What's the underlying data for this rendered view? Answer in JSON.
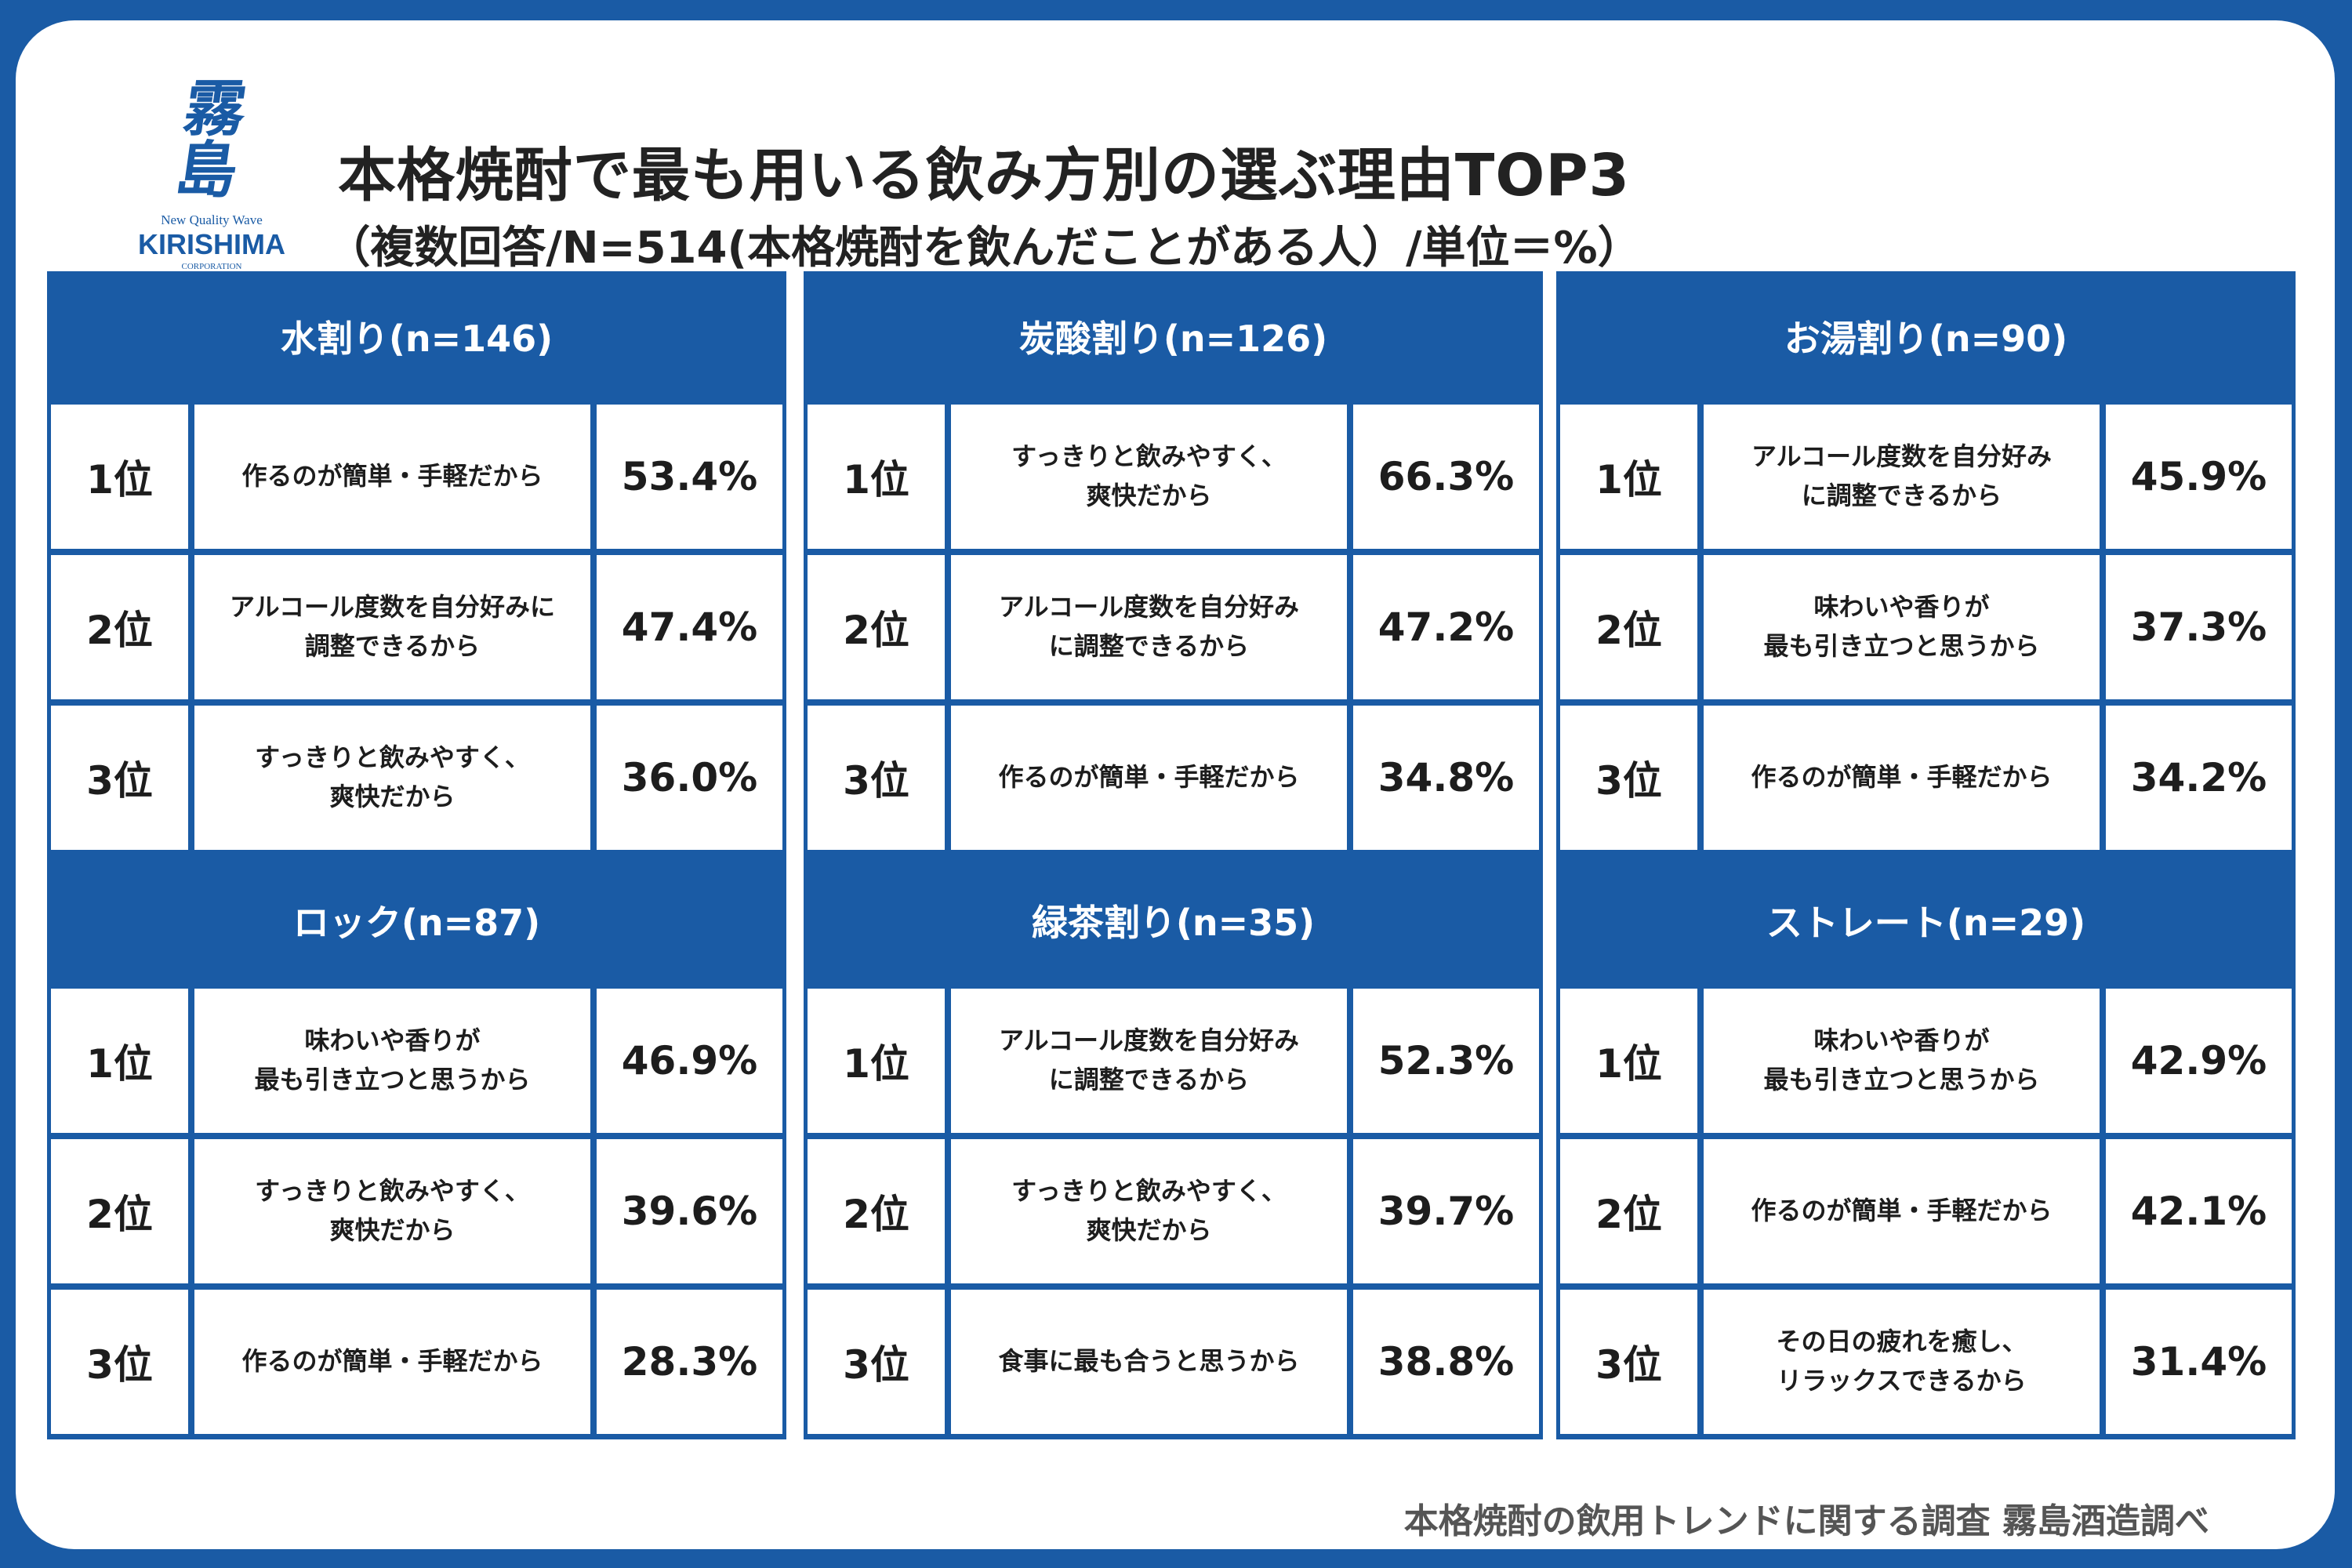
{
  "logo": {
    "kanji": "霧島",
    "tagline": "New Quality Wave",
    "brand": "KIRISHIMA",
    "corporation": "CORPORATION"
  },
  "title": "本格焼酎で最も用いる飲み方別の選ぶ理由TOP3",
  "subtitle": "（複数回答/N=514(本格焼酎を飲んだことがある人）/単位＝%）",
  "footer": "本格焼酎の飲用トレンドに関する調査 霧島酒造調べ",
  "chart_data": {
    "type": "table",
    "title": "本格焼酎で最も用いる飲み方別の選ぶ理由TOP3",
    "unit": "%",
    "panels": [
      {
        "name": "水割り(n=146)",
        "rows": [
          {
            "rank": "1位",
            "reason": "作るのが簡単・手軽だから",
            "value": "53.4%"
          },
          {
            "rank": "2位",
            "reason": "アルコール度数を自分好みに\n調整できるから",
            "value": "47.4%"
          },
          {
            "rank": "3位",
            "reason": "すっきりと飲みやすく、\n爽快だから",
            "value": "36.0%"
          }
        ]
      },
      {
        "name": "炭酸割り(n=126)",
        "rows": [
          {
            "rank": "1位",
            "reason": "すっきりと飲みやすく、\n爽快だから",
            "value": "66.3%"
          },
          {
            "rank": "2位",
            "reason": "アルコール度数を自分好み\nに調整できるから",
            "value": "47.2%"
          },
          {
            "rank": "3位",
            "reason": "作るのが簡単・手軽だから",
            "value": "34.8%"
          }
        ]
      },
      {
        "name": "お湯割り(n=90)",
        "rows": [
          {
            "rank": "1位",
            "reason": "アルコール度数を自分好み\nに調整できるから",
            "value": "45.9%"
          },
          {
            "rank": "2位",
            "reason": "味わいや香りが\n最も引き立つと思うから",
            "value": "37.3%"
          },
          {
            "rank": "3位",
            "reason": "作るのが簡単・手軽だから",
            "value": "34.2%"
          }
        ]
      },
      {
        "name": "ロック(n=87)",
        "rows": [
          {
            "rank": "1位",
            "reason": "味わいや香りが\n最も引き立つと思うから",
            "value": "46.9%"
          },
          {
            "rank": "2位",
            "reason": "すっきりと飲みやすく、\n爽快だから",
            "value": "39.6%"
          },
          {
            "rank": "3位",
            "reason": "作るのが簡単・手軽だから",
            "value": "28.3%"
          }
        ]
      },
      {
        "name": "緑茶割り(n=35)",
        "rows": [
          {
            "rank": "1位",
            "reason": "アルコール度数を自分好み\nに調整できるから",
            "value": "52.3%"
          },
          {
            "rank": "2位",
            "reason": "すっきりと飲みやすく、\n爽快だから",
            "value": "39.7%"
          },
          {
            "rank": "3位",
            "reason": "食事に最も合うと思うから",
            "value": "38.8%"
          }
        ]
      },
      {
        "name": "ストレート(n=29)",
        "rows": [
          {
            "rank": "1位",
            "reason": "味わいや香りが\n最も引き立つと思うから",
            "value": "42.9%"
          },
          {
            "rank": "2位",
            "reason": "作るのが簡単・手軽だから",
            "value": "42.1%"
          },
          {
            "rank": "3位",
            "reason": "その日の疲れを癒し、\nリラックスできるから",
            "value": "31.4%"
          }
        ]
      }
    ]
  }
}
